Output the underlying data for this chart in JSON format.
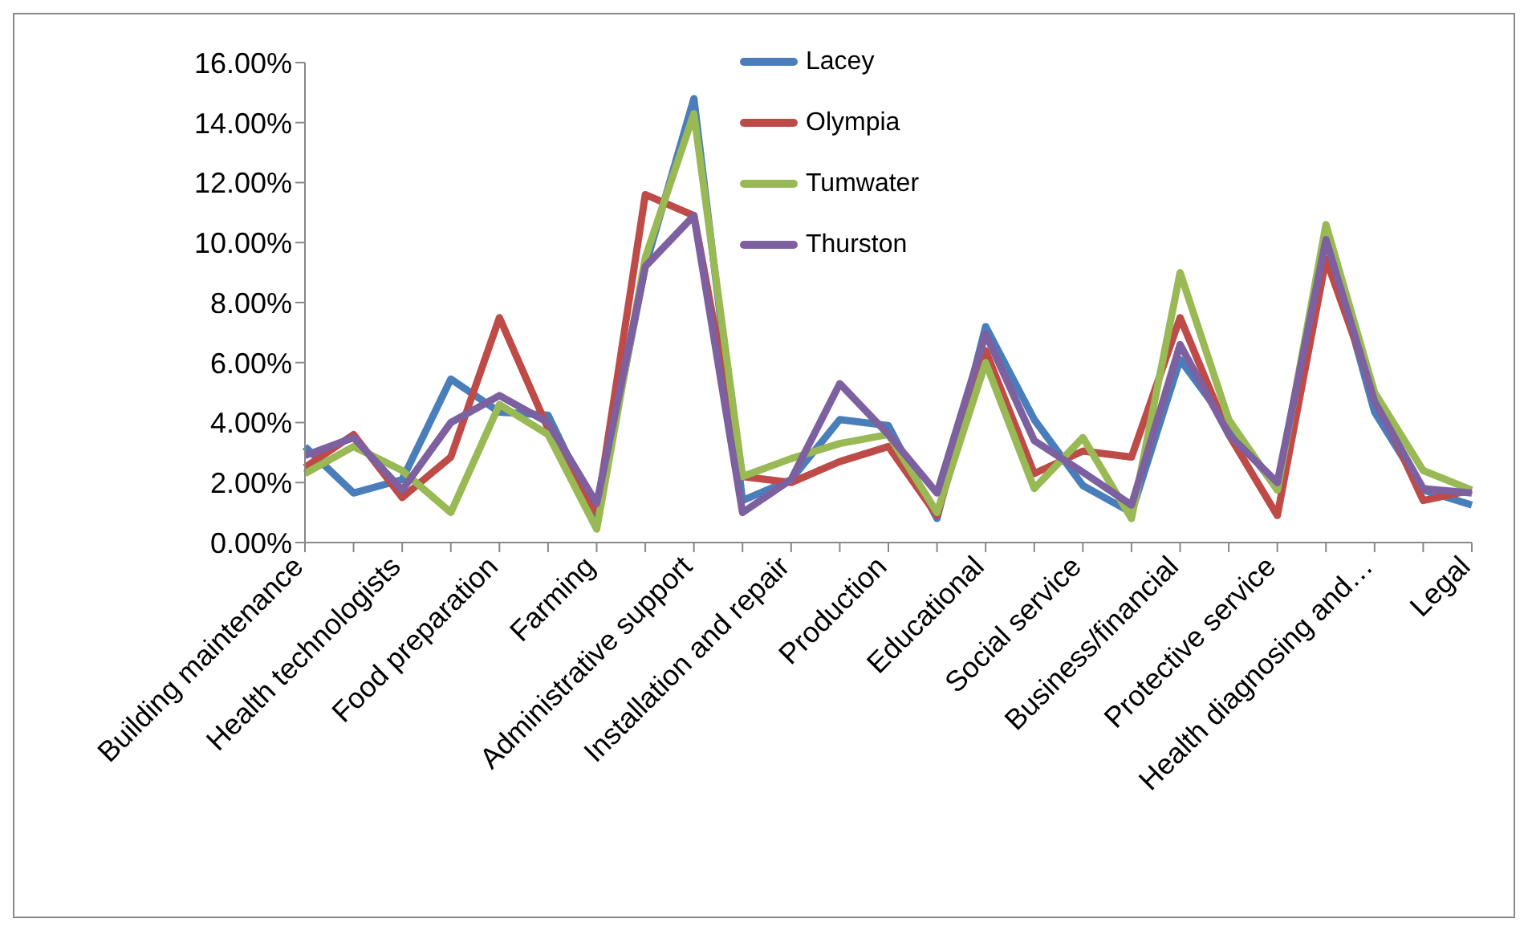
{
  "chart_data": {
    "type": "line",
    "categories": [
      "Building maintenance",
      null,
      "Health technologists",
      null,
      "Food preparation",
      null,
      "Farming",
      null,
      "Administrative support",
      null,
      "Installation and repair",
      null,
      "Production",
      null,
      "Educational",
      null,
      "Social service",
      null,
      "Business/financial",
      null,
      "Protective service",
      null,
      "Health diagnosing and…",
      null,
      "Legal"
    ],
    "series": [
      {
        "name": "Lacey",
        "color": "#4a7ebb",
        "values": [
          3.2,
          1.65,
          2.1,
          5.45,
          4.35,
          4.25,
          0.9,
          9.2,
          14.8,
          1.4,
          2.1,
          4.1,
          3.9,
          0.8,
          7.2,
          4.1,
          1.9,
          1.0,
          6.1,
          3.9,
          1.8,
          10.2,
          4.35,
          1.75,
          1.25
        ]
      },
      {
        "name": "Olympia",
        "color": "#be4b48",
        "values": [
          2.5,
          3.6,
          1.5,
          2.85,
          7.5,
          3.8,
          1.0,
          11.6,
          10.9,
          2.2,
          2.0,
          2.7,
          3.2,
          0.9,
          6.4,
          2.3,
          3.05,
          2.85,
          7.5,
          3.6,
          0.9,
          9.45,
          4.9,
          1.4,
          1.75
        ]
      },
      {
        "name": "Tumwater",
        "color": "#98b954",
        "values": [
          2.3,
          3.2,
          2.4,
          1.0,
          4.6,
          3.6,
          0.45,
          9.5,
          14.3,
          2.2,
          2.8,
          3.3,
          3.6,
          1.0,
          6.0,
          1.8,
          3.5,
          0.8,
          9.0,
          4.1,
          1.75,
          10.6,
          5.0,
          2.4,
          1.75
        ]
      },
      {
        "name": "Thurston",
        "color": "#7d60a0",
        "values": [
          2.9,
          3.5,
          1.75,
          4.0,
          4.9,
          4.0,
          1.3,
          9.2,
          10.9,
          1.0,
          2.1,
          5.3,
          3.6,
          1.65,
          6.95,
          3.4,
          2.35,
          1.25,
          6.6,
          3.6,
          2.0,
          10.1,
          4.7,
          1.8,
          1.65
        ]
      }
    ],
    "ylim": [
      0,
      16
    ],
    "yticks": [
      {
        "value": 0,
        "label": "0.00%"
      },
      {
        "value": 2,
        "label": "2.00%"
      },
      {
        "value": 4,
        "label": "4.00%"
      },
      {
        "value": 6,
        "label": "6.00%"
      },
      {
        "value": 8,
        "label": "8.00%"
      },
      {
        "value": 10,
        "label": "10.00%"
      },
      {
        "value": 12,
        "label": "12.00%"
      },
      {
        "value": 14,
        "label": "14.00%"
      },
      {
        "value": 16,
        "label": "16.00%"
      }
    ],
    "grid": false,
    "legend": "top",
    "marker": "none",
    "line_style": "solid"
  }
}
